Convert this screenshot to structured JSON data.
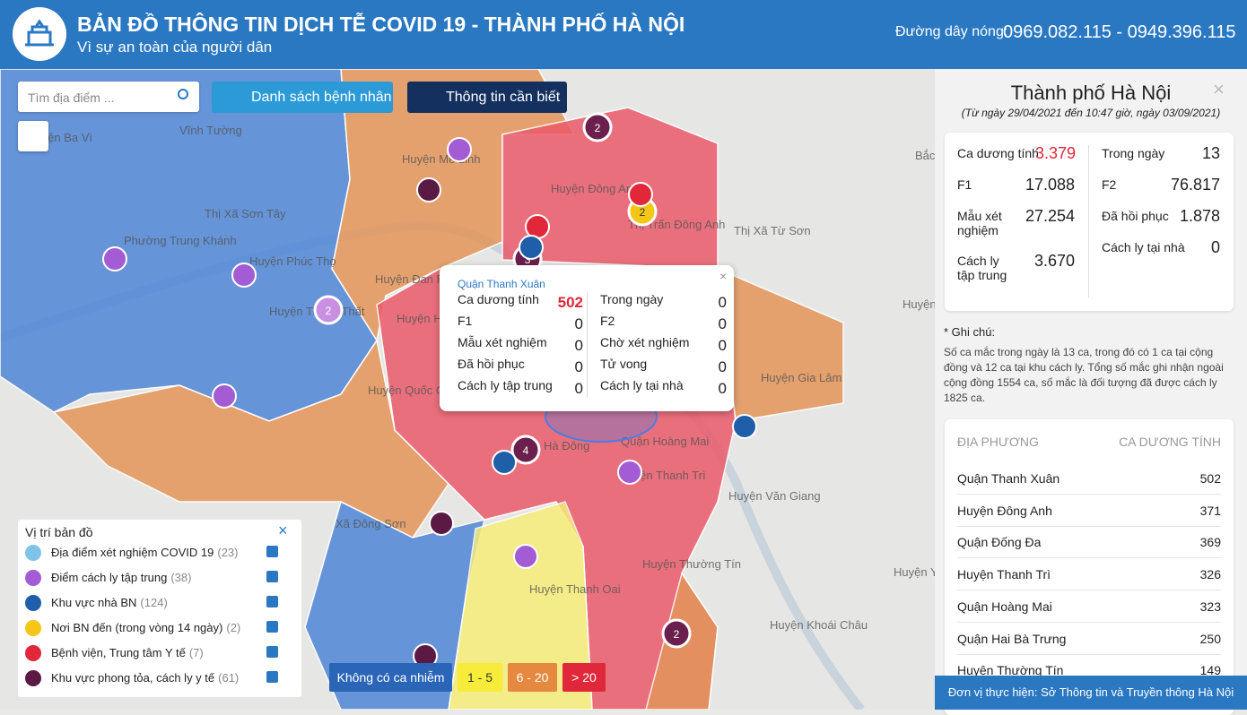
{
  "header": {
    "title": "BẢN ĐỒ THÔNG TIN DỊCH TỄ COVID 19 - THÀNH PHỐ HÀ NỘI",
    "subtitle": "Vì sự an toàn của người dân",
    "hotline_label": "Đường dây nóng:",
    "hotline": "0969.082.115 - 0949.396.115"
  },
  "toolbar": {
    "search_placeholder": "Tìm địa điểm ...",
    "buttons": [
      "Danh sách bệnh nhân",
      "Thông tin cần biết"
    ]
  },
  "map": {
    "labels": [
      "Vĩnh Tường",
      "Huyện Ba Vì",
      "Huyện Mê Linh",
      "Huyện Đông Anh",
      "Thị Trấn Đông Anh",
      "Thị Xã Sơn Tây",
      "Phường Trung Khánh",
      "Huyện Phúc Thọ",
      "Huyện Đan Phượng",
      "Huyện Thạch Thất",
      "Huyện Hoài Đức",
      "Huyện Quốc Oai",
      "Thị Xã Từ Sơn",
      "Huyện Gia Lâm",
      "Quận Hoàng Mai",
      "Huyện Thanh Trì",
      "Huyện Văn Giang",
      "Huyện Thường Tín",
      "Huyện Thanh Oai",
      "Huyện Khoái Châu",
      "Huyện Tiên Thành",
      "Huyện Yên",
      "Xã Đông Sơn",
      "Hà Đông",
      "Bắc"
    ],
    "clusters": [
      "2",
      "2",
      "3",
      "2",
      "4",
      "2"
    ]
  },
  "popup": {
    "title": "Quận Thanh Xuân",
    "left": [
      {
        "label": "Ca dương tính",
        "value": "502"
      },
      {
        "label": "F1",
        "value": "0"
      },
      {
        "label": "Mẫu xét nghiệm",
        "value": "0"
      },
      {
        "label": "Đã hồi phục",
        "value": "0"
      },
      {
        "label": "Cách ly tập trung",
        "value": "0"
      }
    ],
    "right": [
      {
        "label": "Trong ngày",
        "value": "0"
      },
      {
        "label": "F2",
        "value": "0"
      },
      {
        "label": "Chờ xét nghiệm",
        "value": "0"
      },
      {
        "label": "Tử vong",
        "value": "0"
      },
      {
        "label": "Cách ly tại nhà",
        "value": "0"
      }
    ]
  },
  "panel": {
    "title": "Thành phố Hà Nội",
    "period": "(Từ ngày 29/04/2021 đến 10:47 giờ, ngày 03/09/2021)",
    "left": [
      {
        "label": "Ca dương tính",
        "value": "3.379"
      },
      {
        "label": "F1",
        "value": "17.088"
      },
      {
        "label": "Mẫu xét nghiệm",
        "value": "27.254"
      },
      {
        "label": "Cách ly tập trung",
        "value": "3.670"
      }
    ],
    "right": [
      {
        "label": "Trong ngày",
        "value": "13"
      },
      {
        "label": "F2",
        "value": "76.817"
      },
      {
        "label": "Đã hồi phục",
        "value": "1.878"
      },
      {
        "label": "Cách ly tại nhà",
        "value": "0"
      }
    ],
    "note_label": "* Ghi chú:",
    "note": "Số ca mắc trong ngày là 13 ca, trong đó có 1 ca tại cộng đồng và 12 ca tại khu cách ly. Tổng số mắc ghi nhận ngoài cộng đồng 1554 ca, số mắc là đối tượng đã được cách ly 1825 ca.",
    "table": {
      "headers": [
        "ĐỊA PHƯƠNG",
        "CA DƯƠNG TÍNH"
      ],
      "rows": [
        [
          "Quận Thanh Xuân",
          "502"
        ],
        [
          "Huyện Đông Anh",
          "371"
        ],
        [
          "Quận Đống Đa",
          "369"
        ],
        [
          "Huyện Thanh Trì",
          "326"
        ],
        [
          "Quận Hoàng Mai",
          "323"
        ],
        [
          "Quận Hai Bà Trưng",
          "250"
        ],
        [
          "Huyện Thường Tín",
          "149"
        ]
      ]
    },
    "footer": "Đơn vị thực hiện: Sở Thông tin và Truyền thông Hà Nội"
  },
  "legend": {
    "title": "Vị trí bản đồ",
    "items": [
      {
        "label": "Địa điểm xét nghiệm COVID 19",
        "count": "(23)"
      },
      {
        "label": "Điểm cách ly tập trung",
        "count": "(38)"
      },
      {
        "label": "Khu vực nhà BN",
        "count": "(124)"
      },
      {
        "label": "Nơi BN đến (trong vòng 14 ngày)",
        "count": "(2)"
      },
      {
        "label": "Bệnh viện, Trung tâm Y tế",
        "count": "(7)"
      },
      {
        "label": "Khu vực phong tỏa, cách ly y tế",
        "count": "(61)"
      }
    ]
  },
  "key": [
    "Không có ca nhiễm",
    "1 - 5",
    "6 - 20",
    "> 20"
  ]
}
